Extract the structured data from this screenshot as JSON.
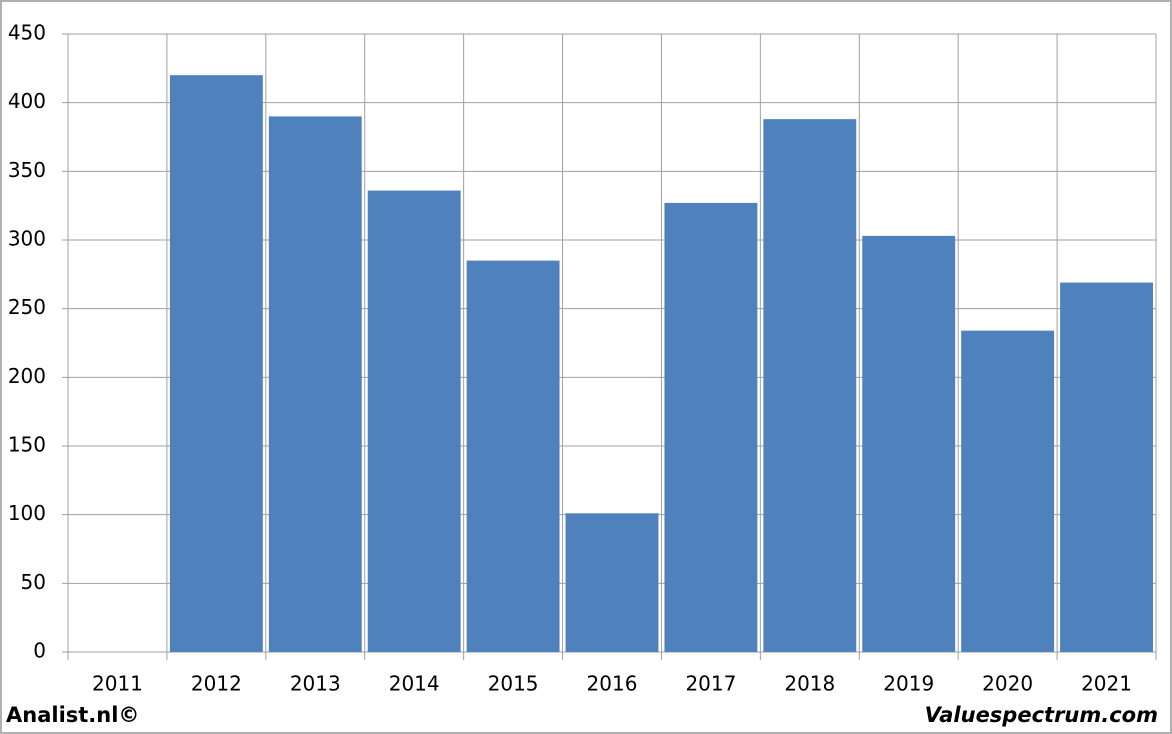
{
  "chart_data": {
    "type": "bar",
    "categories": [
      "2011",
      "2012",
      "2013",
      "2014",
      "2015",
      "2016",
      "2017",
      "2018",
      "2019",
      "2020",
      "2021"
    ],
    "values": [
      null,
      420,
      390,
      336,
      285,
      101,
      327,
      388,
      303,
      234,
      269
    ],
    "color": "#4f81bd",
    "ylim": [
      0,
      450
    ],
    "yticks": [
      0,
      50,
      100,
      150,
      200,
      250,
      300,
      350,
      400,
      450
    ],
    "grid": true,
    "footer_left": "Analist.nl©",
    "footer_right": "Valuespectrum.com"
  }
}
